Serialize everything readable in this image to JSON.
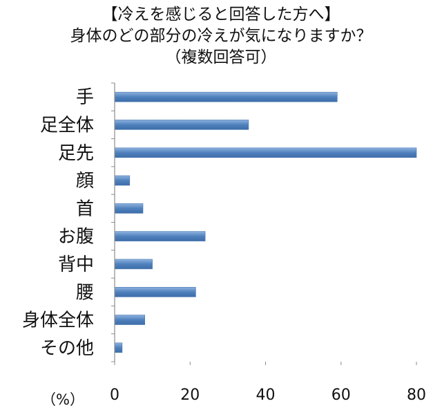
{
  "chart_data": {
    "type": "bar",
    "orientation": "horizontal",
    "title": "【冷えを感じると回答した方へ】",
    "subtitle": "身体のどの部分の冷えが気になりますか？",
    "note": "（複数回答可）",
    "categories": [
      "手",
      "足全体",
      "足先",
      "顔",
      "首",
      "お腹",
      "背中",
      "腰",
      "身体全体",
      "その他"
    ],
    "values": [
      59,
      35.5,
      80,
      4,
      7.5,
      24,
      10,
      21.5,
      8,
      2
    ],
    "xlim": [
      0,
      80
    ],
    "xticks": [
      "0",
      "20",
      "40",
      "60",
      "80"
    ],
    "xlabel": "（%）",
    "ylabel": "",
    "bar_color": "#4f81bd",
    "grid": false
  }
}
